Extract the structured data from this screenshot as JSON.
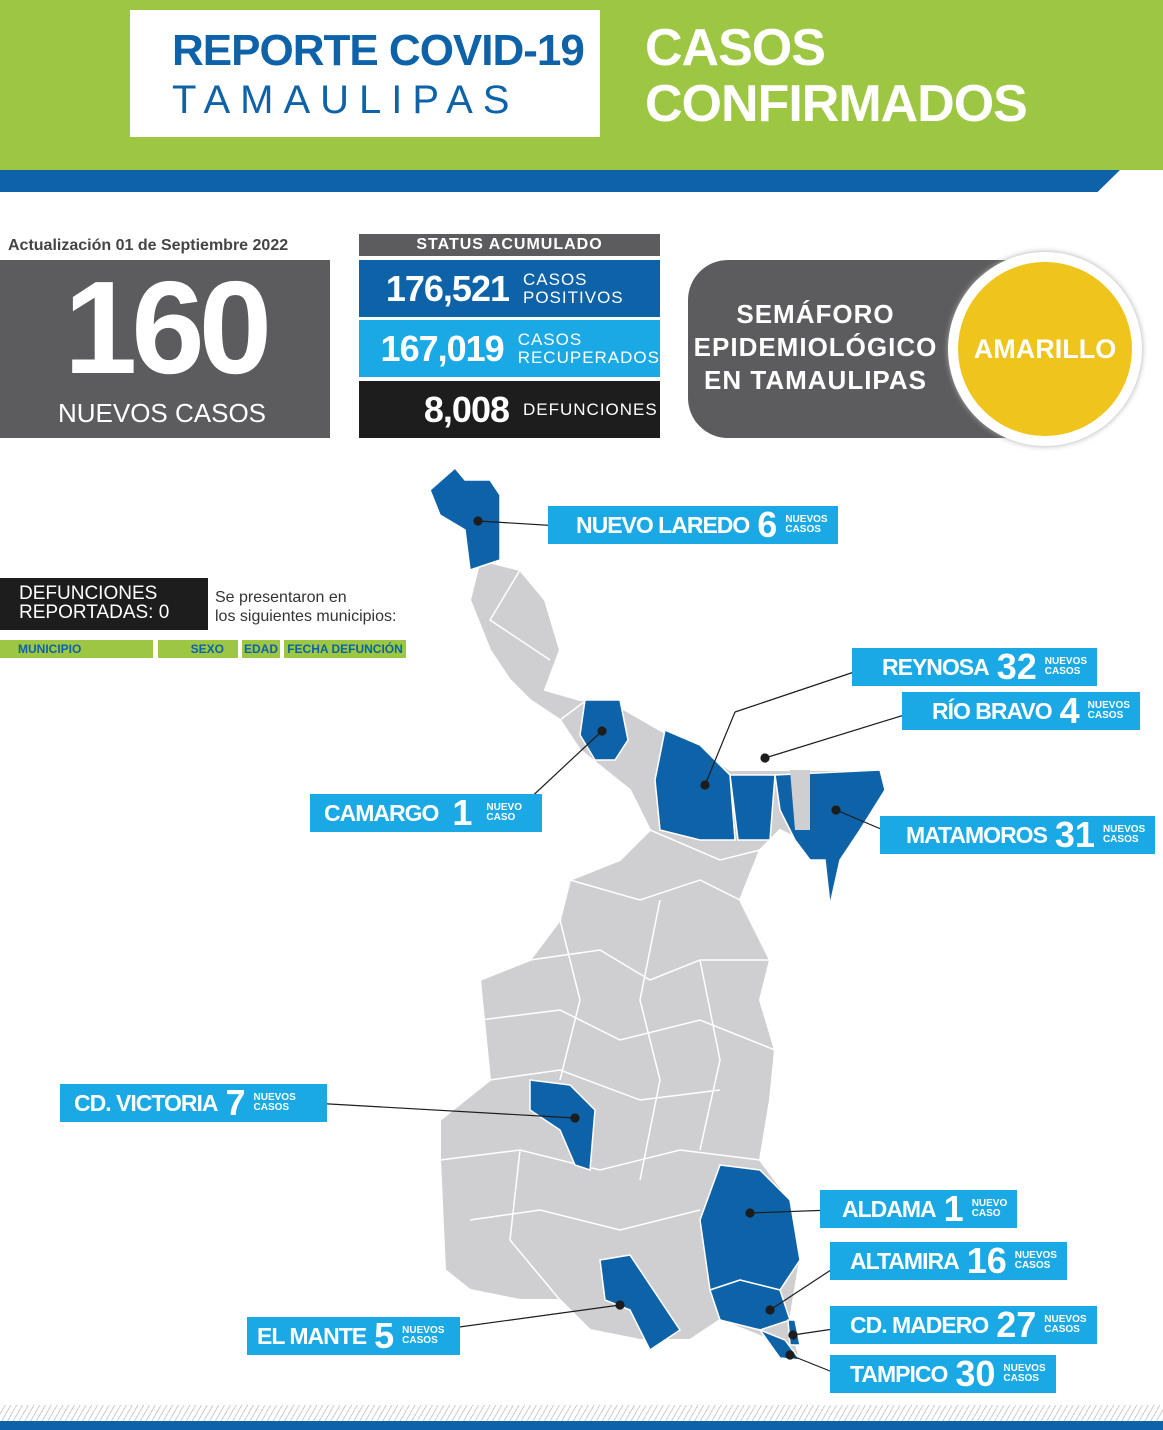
{
  "header": {
    "title_line1": "REPORTE COVID-19",
    "title_line2": "TAMAULIPAS",
    "section_line1": "CASOS",
    "section_line2": "CONFIRMADOS",
    "brand_green": "#9dc743",
    "brand_blue": "#0d62a8"
  },
  "update": "Actualización 01 de Septiembre 2022",
  "new_cases": {
    "value": "160",
    "label": "NUEVOS CASOS"
  },
  "status": {
    "title": "STATUS ACUMULADO",
    "rows": [
      {
        "value": "176,521",
        "label1": "CASOS",
        "label2": "POSITIVOS",
        "color": "#0d62a8"
      },
      {
        "value": "167,019",
        "label1": "CASOS",
        "label2": "RECUPERADOS",
        "color": "#1ba9e6"
      },
      {
        "value": "8,008",
        "label1": "DEFUNCIONES",
        "label2": "",
        "color": "#1d1d1d"
      }
    ]
  },
  "semaforo": {
    "line1": "SEMÁFORO",
    "line2": "EPIDEMIOLÓGICO",
    "line3": "EN TAMAULIPAS",
    "level": "AMARILLO",
    "level_color": "#efc41c"
  },
  "deaths": {
    "line1": "DEFUNCIONES",
    "line2": "REPORTADAS: 0",
    "note1": "Se presentaron en",
    "note2": "los siguientes municipios:",
    "columns": [
      "MUNICIPIO",
      "SEXO",
      "EDAD",
      "FECHA DEFUNCIÓN"
    ]
  },
  "municipalities": [
    {
      "name": "NUEVO LAREDO",
      "cases": "6",
      "s1": "NUEVOS",
      "s2": "CASOS"
    },
    {
      "name": "REYNOSA",
      "cases": "32",
      "s1": "NUEVOS",
      "s2": "CASOS"
    },
    {
      "name": "RÍO BRAVO",
      "cases": "4",
      "s1": "NUEVOS",
      "s2": "CASOS"
    },
    {
      "name": "CAMARGO",
      "cases": "1",
      "s1": "NUEVO",
      "s2": "CASO"
    },
    {
      "name": "MATAMOROS",
      "cases": "31",
      "s1": "NUEVOS",
      "s2": "CASOS"
    },
    {
      "name": "CD. VICTORIA",
      "cases": "7",
      "s1": "NUEVOS",
      "s2": "CASOS"
    },
    {
      "name": "ALDAMA",
      "cases": "1",
      "s1": "NUEVO",
      "s2": "CASO"
    },
    {
      "name": "ALTAMIRA",
      "cases": "16",
      "s1": "NUEVOS",
      "s2": "CASOS"
    },
    {
      "name": "CD. MADERO",
      "cases": "27",
      "s1": "NUEVOS",
      "s2": "CASOS"
    },
    {
      "name": "EL MANTE",
      "cases": "5",
      "s1": "NUEVOS",
      "s2": "CASOS"
    },
    {
      "name": "TAMPICO",
      "cases": "30",
      "s1": "NUEVOS",
      "s2": "CASOS"
    }
  ]
}
